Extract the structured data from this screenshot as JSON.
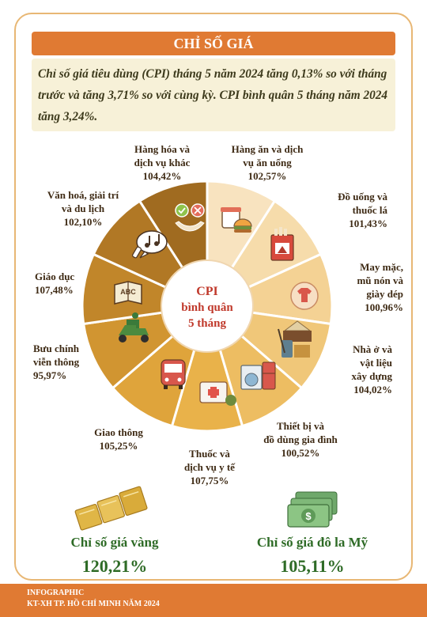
{
  "header": {
    "title": "CHỈ SỐ GIÁ",
    "summary": "Chỉ số giá tiêu dùng (CPI) tháng 5 năm 2024 tăng 0,13% so với tháng trước và tăng 3,71% so với cùng kỳ. CPI bình quân 5 tháng năm 2024 tăng 3,24%."
  },
  "center": {
    "line1": "CPI",
    "line2": "bình quân",
    "line3": "5 tháng"
  },
  "categories": [
    {
      "name_l1": "Hàng ăn và dịch",
      "name_l2": "vụ ăn uống",
      "value": "102,57%",
      "color": "#f8e3bf",
      "icon": "food-icon"
    },
    {
      "name_l1": "Đồ uống và",
      "name_l2": "thuốc lá",
      "value": "101,43%",
      "color": "#f6dcab",
      "icon": "drink-tobacco-icon"
    },
    {
      "name_l1": "May mặc,",
      "name_l2": "mũ nón và",
      "name_l3": "giày dép",
      "value": "100,96%",
      "color": "#f4d294",
      "icon": "clothing-icon"
    },
    {
      "name_l1": "Nhà ở và",
      "name_l2": "vật liệu",
      "name_l3": "xây dựng",
      "value": "104,02%",
      "color": "#f0c779",
      "icon": "construction-icon"
    },
    {
      "name_l1": "Thiết bị và",
      "name_l2": "đồ dùng gia đình",
      "value": "100,52%",
      "color": "#edbd62",
      "icon": "appliance-icon"
    },
    {
      "name_l1": "Thuốc và",
      "name_l2": "dịch vụ y tế",
      "value": "107,75%",
      "color": "#e9b24a",
      "icon": "medicine-icon"
    },
    {
      "name_l1": "Giao thông",
      "value": "105,25%",
      "color": "#dfa43b",
      "icon": "bus-icon"
    },
    {
      "name_l1": "Bưu chính",
      "name_l2": "viễn thông",
      "value": "95,97%",
      "color": "#d19531",
      "icon": "delivery-icon"
    },
    {
      "name_l1": "Giáo dục",
      "value": "107,48%",
      "color": "#c1862a",
      "icon": "book-icon"
    },
    {
      "name_l1": "Văn hoá, giải trí",
      "name_l2": "và du lịch",
      "value": "102,10%",
      "color": "#b17825",
      "icon": "entertainment-icon"
    },
    {
      "name_l1": "Hàng hóa và",
      "name_l2": "dịch vụ khác",
      "value": "104,42%",
      "color": "#a06b20",
      "icon": "services-icon"
    }
  ],
  "gold": {
    "label": "Chỉ số giá vàng",
    "value": "120,21%"
  },
  "usd": {
    "label": "Chỉ số giá đô la Mỹ",
    "value": "105,11%"
  },
  "footer": {
    "line1": "INFOGRAPHIC",
    "line2": "KT-XH TP. HỒ CHÍ MINH NĂM 2024"
  }
}
